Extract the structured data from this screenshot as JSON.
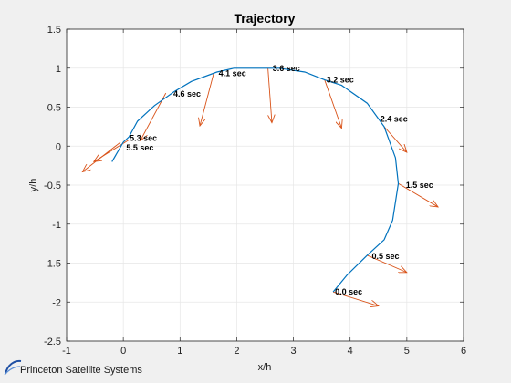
{
  "footer": {
    "company": "Princeton Satellite Systems"
  },
  "chart_data": {
    "type": "line",
    "title": "Trajectory",
    "xlabel": "x/h",
    "ylabel": "y/h",
    "xlim": [
      -1,
      6
    ],
    "ylim": [
      -2.5,
      1.5
    ],
    "xticks": [
      -1,
      0,
      1,
      2,
      3,
      4,
      5,
      6
    ],
    "yticks": [
      -2.5,
      -2,
      -1.5,
      -1,
      -0.5,
      0,
      0.5,
      1,
      1.5
    ],
    "grid": true,
    "line_color": "#0072bd",
    "arrow_color": "#d95319",
    "series": [
      {
        "x": [
          3.7,
          3.95,
          4.3,
          4.6,
          4.75,
          4.85,
          4.8,
          4.6,
          4.3,
          3.85,
          3.55,
          3.2,
          2.75,
          2.4,
          1.95,
          1.65,
          1.2,
          0.9,
          0.55,
          0.25,
          0.1,
          0.0,
          -0.2
        ],
        "y": [
          -1.87,
          -1.65,
          -1.4,
          -1.2,
          -0.95,
          -0.48,
          -0.15,
          0.25,
          0.55,
          0.78,
          0.85,
          0.95,
          1.0,
          1.0,
          1.0,
          0.95,
          0.83,
          0.7,
          0.52,
          0.32,
          0.12,
          0.05,
          -0.2
        ]
      }
    ],
    "time_labels": [
      {
        "text": "0.0 sec",
        "x": 3.7,
        "y": -1.87
      },
      {
        "text": "0.5 sec",
        "x": 4.35,
        "y": -1.41
      },
      {
        "text": "1.5 sec",
        "x": 4.95,
        "y": -0.5
      },
      {
        "text": "2.4 sec",
        "x": 4.5,
        "y": 0.35
      },
      {
        "text": "3.2 sec",
        "x": 3.55,
        "y": 0.85
      },
      {
        "text": "3.6 sec",
        "x": 2.6,
        "y": 1.0
      },
      {
        "text": "4.1 sec",
        "x": 1.65,
        "y": 0.93
      },
      {
        "text": "4.6 sec",
        "x": 0.85,
        "y": 0.67
      },
      {
        "text": "5.3 sec",
        "x": 0.08,
        "y": 0.1
      },
      {
        "text": "5.5 sec",
        "x": 0.02,
        "y": -0.02
      }
    ],
    "arrows": [
      {
        "x0": 3.7,
        "y0": -1.87,
        "x1": 4.5,
        "y1": -2.05
      },
      {
        "x0": 4.3,
        "y0": -1.4,
        "x1": 5.0,
        "y1": -1.62
      },
      {
        "x0": 4.85,
        "y0": -0.48,
        "x1": 5.55,
        "y1": -0.78
      },
      {
        "x0": 4.6,
        "y0": 0.25,
        "x1": 5.0,
        "y1": -0.08
      },
      {
        "x0": 3.55,
        "y0": 0.85,
        "x1": 3.85,
        "y1": 0.23
      },
      {
        "x0": 2.55,
        "y0": 1.0,
        "x1": 2.62,
        "y1": 0.3
      },
      {
        "x0": 1.6,
        "y0": 0.95,
        "x1": 1.35,
        "y1": 0.26
      },
      {
        "x0": 0.75,
        "y0": 0.68,
        "x1": 0.3,
        "y1": 0.07
      },
      {
        "x0": 0.1,
        "y0": 0.08,
        "x1": -0.52,
        "y1": -0.2
      },
      {
        "x0": -0.05,
        "y0": 0.05,
        "x1": -0.72,
        "y1": -0.33
      }
    ]
  }
}
